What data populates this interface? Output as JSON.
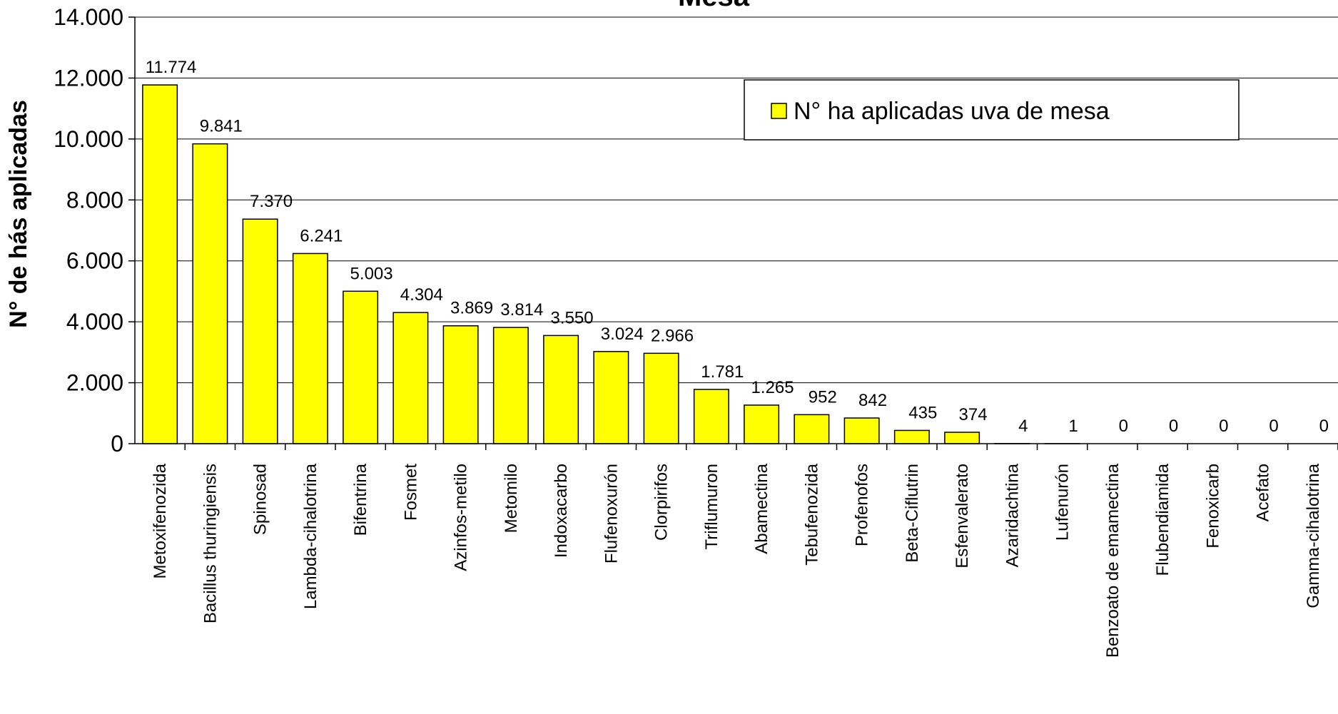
{
  "chart_data": {
    "type": "bar",
    "title": "Mesa",
    "ylabel": "N° de hás aplicadas",
    "xlabel": "",
    "ylim": [
      0,
      14000
    ],
    "yticks": [
      0,
      2000,
      4000,
      6000,
      8000,
      10000,
      12000,
      14000
    ],
    "ytick_labels": [
      "0",
      "2.000",
      "4.000",
      "6.000",
      "8.000",
      "10.000",
      "12.000",
      "14.000"
    ],
    "grid": true,
    "legend_position": "top-right",
    "bar_color": "#ffff00",
    "categories": [
      "Metoxifenozida",
      "Bacillus thuringiensis",
      "Spinosad",
      "Lambda-cihalotrina",
      "Bifentrina",
      "Fosmet",
      "Azinfos-metilo",
      "Metomilo",
      "Indoxacarbo",
      "Flufenoxurón",
      "Clorpirifos",
      "Triflumuron",
      "Abamectina",
      "Tebufenozida",
      "Profenofos",
      "Beta-Ciflutrin",
      "Esfenvalerato",
      "Azaridachtina",
      "Lufenurón",
      "Benzoato de emamectina",
      "Flubendiamida",
      "Fenoxicarb",
      "Acefato",
      "Gamma-cihalotrina"
    ],
    "series": [
      {
        "name": "N° ha aplicadas uva de mesa",
        "values": [
          11774,
          9841,
          7370,
          6241,
          5003,
          4304,
          3869,
          3814,
          3550,
          3024,
          2966,
          1781,
          1265,
          952,
          842,
          435,
          374,
          4,
          1,
          0,
          0,
          0,
          0,
          0
        ],
        "labels": [
          "11.774",
          "9.841",
          "7.370",
          "6.241",
          "5.003",
          "4.304",
          "3.869",
          "3.814",
          "3.550",
          "3.024",
          "2.966",
          "1.781",
          "1.265",
          "952",
          "842",
          "435",
          "374",
          "4",
          "1",
          "0",
          "0",
          "0",
          "0",
          "0"
        ]
      }
    ]
  }
}
